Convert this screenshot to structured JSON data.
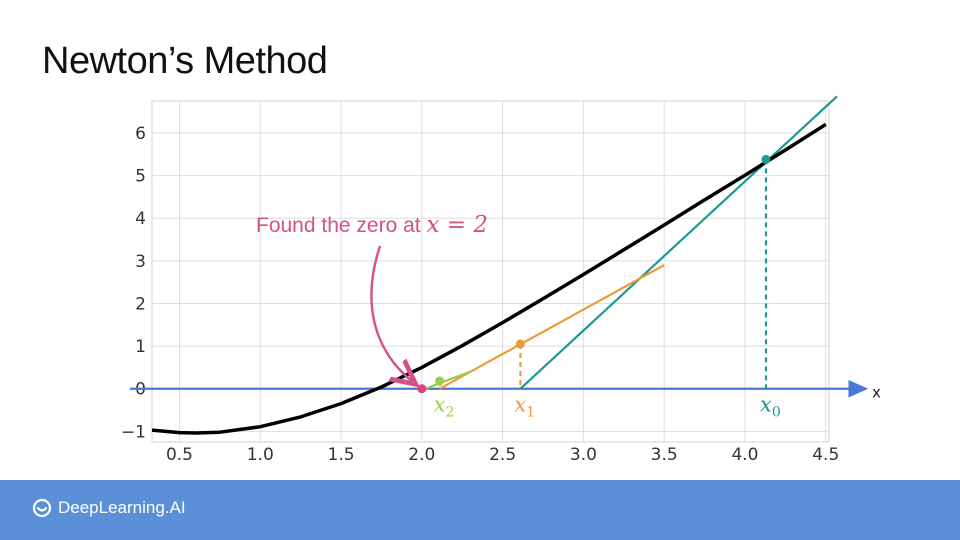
{
  "slide": {
    "title": "Newton’s Method"
  },
  "footer": {
    "brand": "DeepLearning.AI",
    "logo_icon": "deeplearning-ai-logo-icon",
    "background": "#5b8fd8"
  },
  "chart_data": {
    "type": "line",
    "title": "",
    "xlabel": "x",
    "ylabel": "",
    "xlim": [
      0.33,
      4.52
    ],
    "ylim": [
      -1.25,
      6.75
    ],
    "xticks": [
      0.5,
      1.0,
      1.5,
      2.0,
      2.5,
      3.0,
      3.5,
      4.0,
      4.5
    ],
    "xtick_labels": [
      "0.5",
      "1.0",
      "1.5",
      "2.0",
      "2.5",
      "3.0",
      "3.5",
      "4.0",
      "4.5"
    ],
    "yticks": [
      -1,
      0,
      1,
      2,
      3,
      4,
      5,
      6
    ],
    "ytick_labels": [
      "−1",
      "0",
      "1",
      "2",
      "3",
      "4",
      "5",
      "6"
    ],
    "grid": true,
    "curve": {
      "x": [
        0.33,
        0.5,
        0.6,
        0.75,
        1.0,
        1.25,
        1.5,
        1.75,
        2.0,
        2.25,
        2.5,
        2.75,
        3.0,
        3.25,
        3.5,
        3.75,
        4.0,
        4.25,
        4.5
      ],
      "y": [
        -0.97,
        -1.03,
        -1.04,
        -1.02,
        -0.89,
        -0.66,
        -0.35,
        0.04,
        0.5,
        1.01,
        1.55,
        2.11,
        2.68,
        3.26,
        3.84,
        4.43,
        5.01,
        5.6,
        6.2
      ],
      "color": "#000000"
    },
    "points": [
      {
        "label": "x",
        "sub": "0",
        "x": 4.13,
        "y": 5.38,
        "color": "#1b9994"
      },
      {
        "label": "x",
        "sub": "1",
        "x": 2.61,
        "y": 1.05,
        "color": "#ee9a3a"
      },
      {
        "label": "x",
        "sub": "2",
        "x": 2.11,
        "y": 0.18,
        "color": "#9acd4c"
      },
      {
        "label": "",
        "sub": "",
        "x": 2.0,
        "y": 0.0,
        "color": "#e0407f"
      }
    ],
    "tangents": [
      {
        "x": [
          2.61,
          4.57
        ],
        "y": [
          0.0,
          6.86
        ],
        "color": "#1b9994"
      },
      {
        "x": [
          2.11,
          3.5
        ],
        "y": [
          0.0,
          2.9
        ],
        "color": "#ee9a3a"
      },
      {
        "x": [
          2.02,
          2.3
        ],
        "y": [
          0.0,
          0.4
        ],
        "color": "#9acd4c"
      }
    ],
    "axis_line_color": "#4a78d8",
    "annotation": {
      "text": "Found the zero at ",
      "math": "x = 2",
      "color": "#d4508a",
      "target_x": 2.0,
      "target_y": 0.0
    }
  }
}
